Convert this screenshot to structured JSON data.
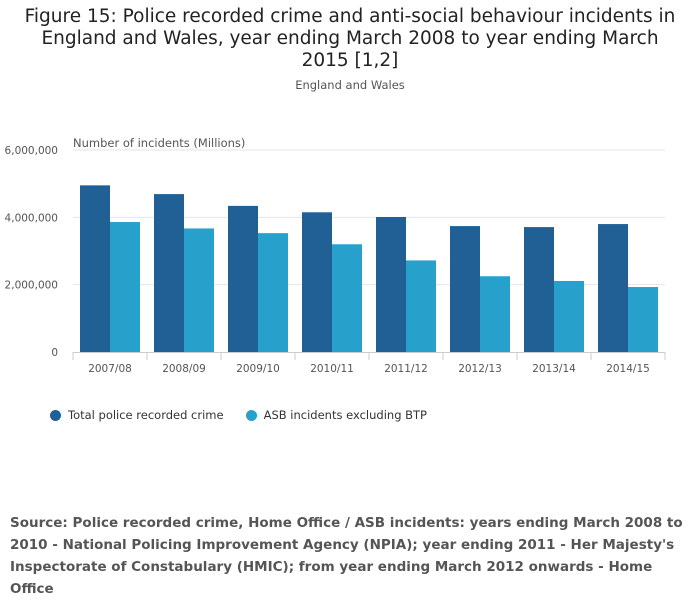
{
  "title": "Figure 15: Police recorded crime and anti-social behaviour incidents in England and Wales, year ending March 2008 to year ending March 2015 [1,2]",
  "subtitle": "England and Wales",
  "source": "Source: Police recorded crime, Home Office / ASB incidents: years ending March 2008 to 2010 - National Policing Improvement Agency (NPIA); year ending 2011 - Her Majesty's Inspectorate of Constabulary (HMIC); from year ending March 2012 onwards - Home Office",
  "chart_data": {
    "type": "bar",
    "title": "Figure 15: Police recorded crime and anti-social behaviour incidents in England and Wales, year ending March 2008 to year ending March 2015 [1,2]",
    "ylabel": "Number of incidents (Millions)",
    "xlabel": "",
    "ylim": [
      0,
      6000000
    ],
    "yticks": [
      0,
      2000000,
      4000000,
      6000000
    ],
    "ytick_labels": [
      "0",
      "2,000,000",
      "4,000,000",
      "6,000,000"
    ],
    "grid": true,
    "legend_position": "bottom-left",
    "categories": [
      "2007/08",
      "2008/09",
      "2009/10",
      "2010/11",
      "2011/12",
      "2012/13",
      "2013/14",
      "2014/15"
    ],
    "series": [
      {
        "name": "Total police recorded crime",
        "color": "#206095",
        "values": [
          4950000,
          4690000,
          4340000,
          4150000,
          4010000,
          3740000,
          3710000,
          3800000
        ]
      },
      {
        "name": "ASB incidents excluding BTP",
        "color": "#27a0cc",
        "values": [
          3860000,
          3670000,
          3530000,
          3200000,
          2720000,
          2250000,
          2110000,
          1930000
        ]
      }
    ]
  }
}
